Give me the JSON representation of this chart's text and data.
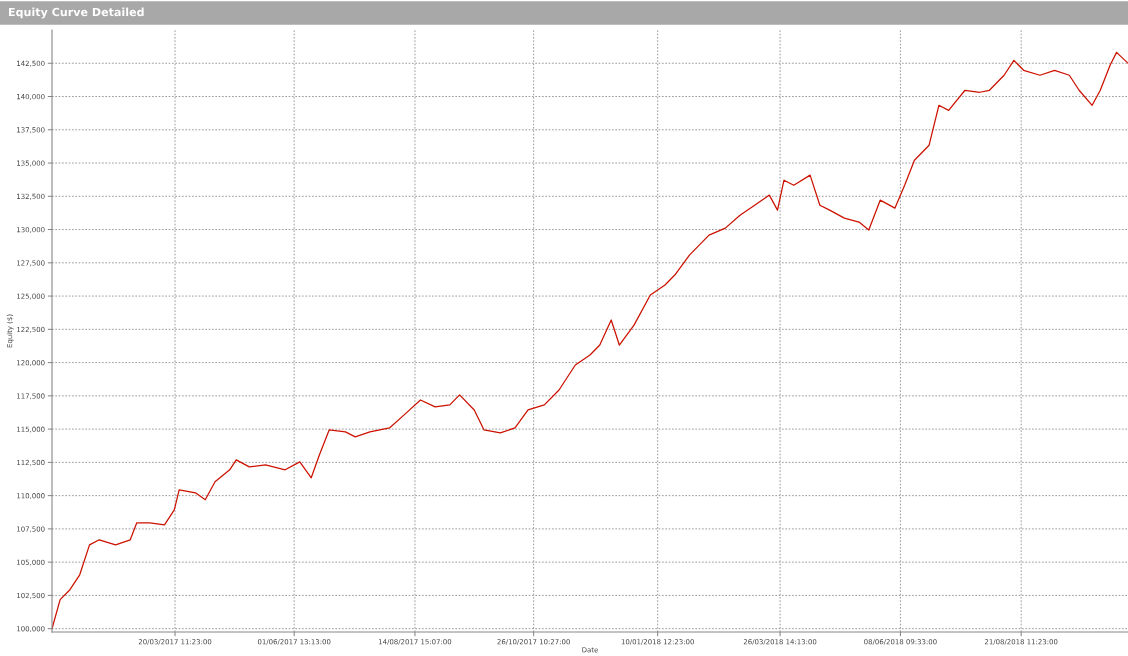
{
  "chart_data": {
    "type": "line",
    "title": "Equity Curve Detailed",
    "xlabel": "Date",
    "ylabel": "Equity ($)",
    "x": [
      "2017-01-04",
      "2017-01-09",
      "2017-01-15",
      "2017-01-21",
      "2017-01-27",
      "2017-02-02",
      "2017-02-12",
      "2017-02-21",
      "2017-02-25",
      "2017-03-05",
      "2017-03-14",
      "2017-03-20",
      "2017-03-23",
      "2017-04-02",
      "2017-04-08",
      "2017-04-14",
      "2017-04-23",
      "2017-04-27",
      "2017-05-05",
      "2017-05-15",
      "2017-05-27",
      "2017-06-05",
      "2017-06-12",
      "2017-06-17",
      "2017-06-23",
      "2017-07-03",
      "2017-07-09",
      "2017-07-18",
      "2017-07-30",
      "2017-08-08",
      "2017-08-18",
      "2017-08-27",
      "2017-09-05",
      "2017-09-11",
      "2017-09-20",
      "2017-09-26",
      "2017-10-06",
      "2017-10-15",
      "2017-10-23",
      "2017-11-02",
      "2017-11-11",
      "2017-11-21",
      "2017-11-30",
      "2017-12-06",
      "2017-12-13",
      "2017-12-18",
      "2017-12-27",
      "2018-01-06",
      "2018-01-15",
      "2018-01-21",
      "2018-01-30",
      "2018-02-05",
      "2018-02-11",
      "2018-02-21",
      "2018-03-02",
      "2018-03-11",
      "2018-03-20",
      "2018-03-25",
      "2018-03-29",
      "2018-04-04",
      "2018-04-14",
      "2018-04-20",
      "2018-04-26",
      "2018-05-05",
      "2018-05-14",
      "2018-05-20",
      "2018-05-27",
      "2018-06-05",
      "2018-06-11",
      "2018-06-17",
      "2018-06-26",
      "2018-07-02",
      "2018-07-08",
      "2018-07-18",
      "2018-07-27",
      "2018-08-02",
      "2018-08-11",
      "2018-08-17",
      "2018-08-23",
      "2018-09-02",
      "2018-09-11",
      "2018-09-20",
      "2018-09-26",
      "2018-10-04",
      "2018-10-09",
      "2018-10-15",
      "2018-10-19",
      "2018-10-26"
    ],
    "series": [
      {
        "color": "#cc1100",
        "values": [
          100000,
          102180,
          102930,
          104050,
          106300,
          106680,
          106300,
          106680,
          107960,
          107960,
          107800,
          108930,
          110440,
          110210,
          109690,
          111040,
          111940,
          112690,
          112160,
          112310,
          111940,
          112540,
          111340,
          113060,
          114940,
          114790,
          114420,
          114790,
          115090,
          116070,
          117190,
          116670,
          116820,
          117570,
          116440,
          114940,
          114720,
          115090,
          116440,
          116820,
          117940,
          119820,
          120570,
          121320,
          123200,
          121320,
          122820,
          125080,
          125830,
          126580,
          128080,
          128830,
          129580,
          130110,
          131080,
          131830,
          132590,
          131460,
          133710,
          133330,
          134090,
          131830,
          131460,
          130860,
          130560,
          129960,
          132210,
          131610,
          133330,
          135210,
          136340,
          139340,
          138960,
          140470,
          140320,
          140470,
          141600,
          142720,
          141970,
          141600,
          141970,
          141600,
          140470,
          139340,
          140470,
          142350,
          143320,
          142500
        ]
      }
    ],
    "xlim": [
      "2017-01-04",
      "2018-10-26"
    ],
    "ylim": [
      99750,
      145000
    ],
    "xticks": [
      {
        "value": "2017-03-20T11:23",
        "label": "20/03/2017 11:23:00"
      },
      {
        "value": "2017-06-01T13:13",
        "label": "01/06/2017 13:13:00"
      },
      {
        "value": "2017-08-14T15:07",
        "label": "14/08/2017 15:07:00"
      },
      {
        "value": "2017-10-26T10:27",
        "label": "26/10/2017 10:27:00"
      },
      {
        "value": "2018-01-10T12:23",
        "label": "10/01/2018 12:23:00"
      },
      {
        "value": "2018-03-26T14:13",
        "label": "26/03/2018 14:13:00"
      },
      {
        "value": "2018-06-08T09:33",
        "label": "08/06/2018 09:33:00"
      },
      {
        "value": "2018-08-21T11:23",
        "label": "21/08/2018 11:23:00"
      }
    ],
    "yticks": [
      {
        "value": 100000,
        "label": "100,000"
      },
      {
        "value": 102500,
        "label": "102,500"
      },
      {
        "value": 105000,
        "label": "105,000"
      },
      {
        "value": 107500,
        "label": "107,500"
      },
      {
        "value": 110000,
        "label": "110,000"
      },
      {
        "value": 112500,
        "label": "112,500"
      },
      {
        "value": 115000,
        "label": "115,000"
      },
      {
        "value": 117500,
        "label": "117,500"
      },
      {
        "value": 120000,
        "label": "120,000"
      },
      {
        "value": 122500,
        "label": "122,500"
      },
      {
        "value": 125000,
        "label": "125,000"
      },
      {
        "value": 127500,
        "label": "127,500"
      },
      {
        "value": 130000,
        "label": "130,000"
      },
      {
        "value": 132500,
        "label": "132,500"
      },
      {
        "value": 135000,
        "label": "135,000"
      },
      {
        "value": 137500,
        "label": "137,500"
      },
      {
        "value": 140000,
        "label": "140,000"
      },
      {
        "value": 142500,
        "label": "142,500"
      }
    ],
    "grid": true,
    "line_style": "solid",
    "marker": "none"
  }
}
